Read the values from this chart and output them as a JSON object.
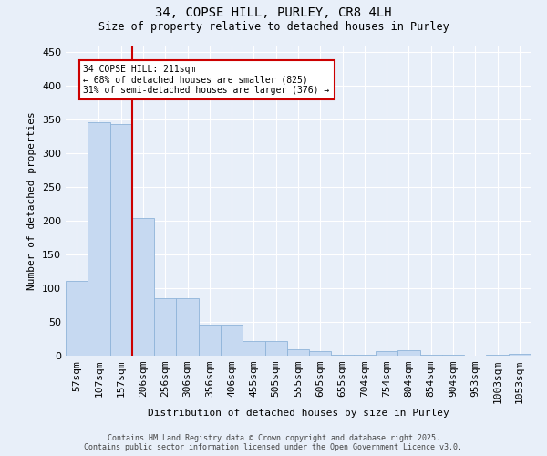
{
  "title_line1": "34, COPSE HILL, PURLEY, CR8 4LH",
  "title_line2": "Size of property relative to detached houses in Purley",
  "xlabel": "Distribution of detached houses by size in Purley",
  "ylabel": "Number of detached properties",
  "bar_labels": [
    "57sqm",
    "107sqm",
    "157sqm",
    "206sqm",
    "256sqm",
    "306sqm",
    "356sqm",
    "406sqm",
    "455sqm",
    "505sqm",
    "555sqm",
    "605sqm",
    "655sqm",
    "704sqm",
    "754sqm",
    "804sqm",
    "854sqm",
    "904sqm",
    "953sqm",
    "1003sqm",
    "1053sqm"
  ],
  "bar_values": [
    111,
    347,
    344,
    204,
    85,
    85,
    46,
    46,
    22,
    21,
    9,
    7,
    1,
    1,
    7,
    8,
    2,
    1,
    0,
    1,
    3
  ],
  "bar_color": "#c6d9f1",
  "bar_edge_color": "#8fb4d9",
  "vline_color": "#cc0000",
  "vline_pos": 3.5,
  "annotation_text": "34 COPSE HILL: 211sqm\n← 68% of detached houses are smaller (825)\n31% of semi-detached houses are larger (376) →",
  "annotation_box_color": "#ffffff",
  "annotation_box_edge": "#cc0000",
  "ylim": [
    0,
    460
  ],
  "yticks": [
    0,
    50,
    100,
    150,
    200,
    250,
    300,
    350,
    400,
    450
  ],
  "background_color": "#e8eff9",
  "grid_color": "#ffffff",
  "footer_line1": "Contains HM Land Registry data © Crown copyright and database right 2025.",
  "footer_line2": "Contains public sector information licensed under the Open Government Licence v3.0."
}
